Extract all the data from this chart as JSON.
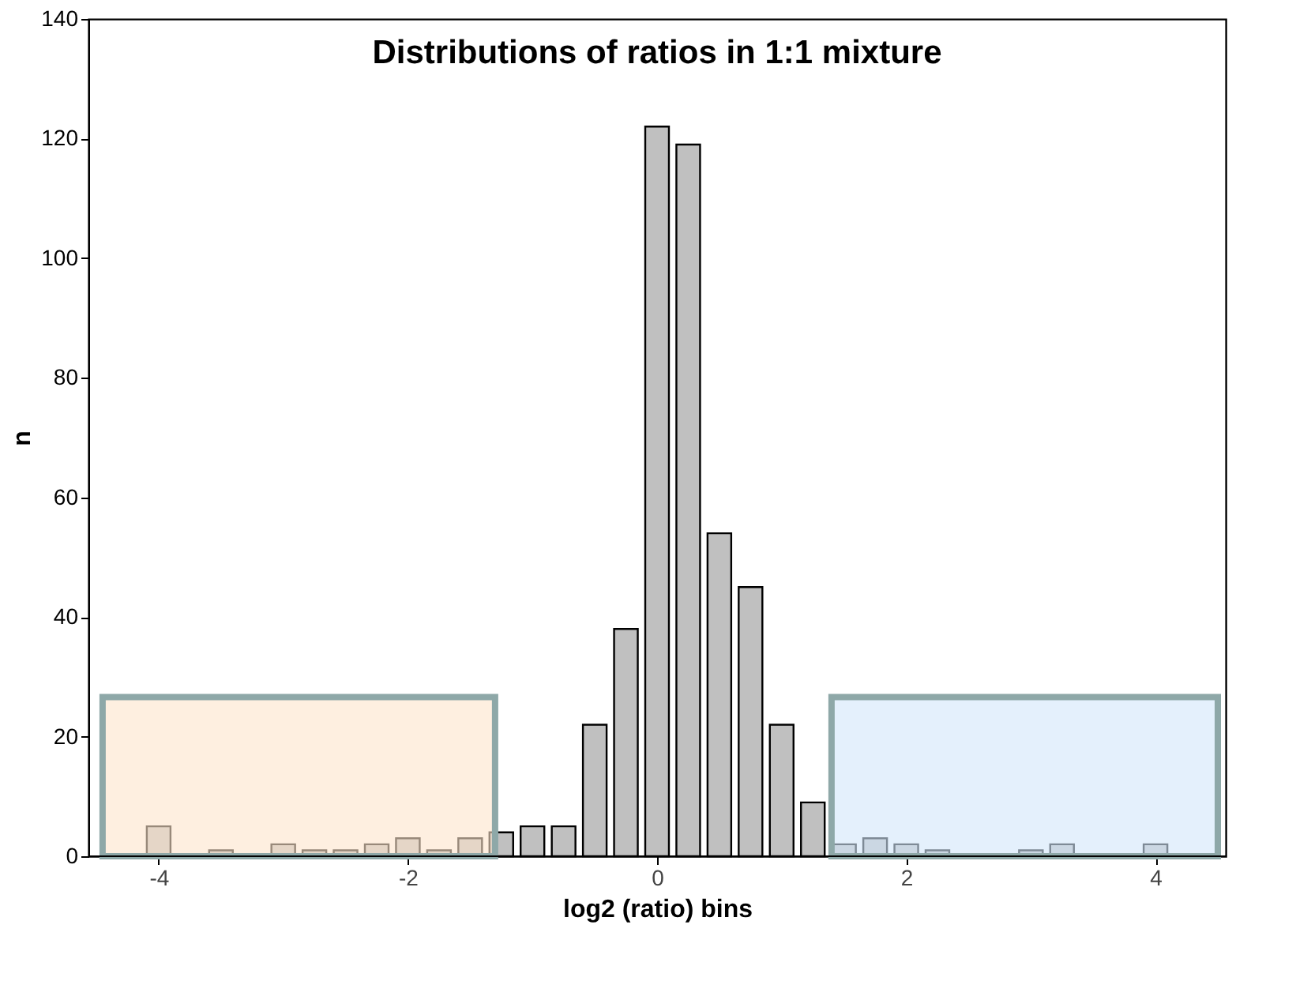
{
  "chart_data": {
    "type": "bar",
    "title": "Distributions of ratios in 1:1 mixture",
    "xlabel": "log2 (ratio) bins",
    "ylabel": "n",
    "x": [
      -4.0,
      -3.5,
      -3.0,
      -2.75,
      -2.5,
      -2.25,
      -2.0,
      -1.75,
      -1.5,
      -1.25,
      -1.0,
      -0.75,
      -0.5,
      -0.25,
      0.0,
      0.25,
      0.5,
      0.75,
      1.0,
      1.25,
      1.5,
      1.75,
      2.0,
      2.25,
      3.0,
      3.25,
      4.0
    ],
    "values": [
      5,
      1,
      2,
      1,
      1,
      2,
      3,
      1,
      3,
      4,
      5,
      5,
      22,
      38,
      122,
      119,
      54,
      45,
      22,
      9,
      2,
      3,
      2,
      1,
      1,
      2,
      2
    ],
    "color": "#c0c0c0",
    "xlim": [
      -4.5,
      4.5
    ],
    "xticks": [
      -4,
      -2,
      0,
      2,
      4
    ],
    "ylim": [
      0,
      140
    ],
    "yticks": [
      0,
      20,
      40,
      60,
      80,
      100,
      120,
      140
    ],
    "grid": false,
    "bands": [
      {
        "axis": "x",
        "from": -4.45,
        "to": -1.3,
        "color": "#fde4cc"
      },
      {
        "axis": "x",
        "from": 1.4,
        "to": 4.5,
        "color": "#d2e6fa"
      }
    ]
  }
}
